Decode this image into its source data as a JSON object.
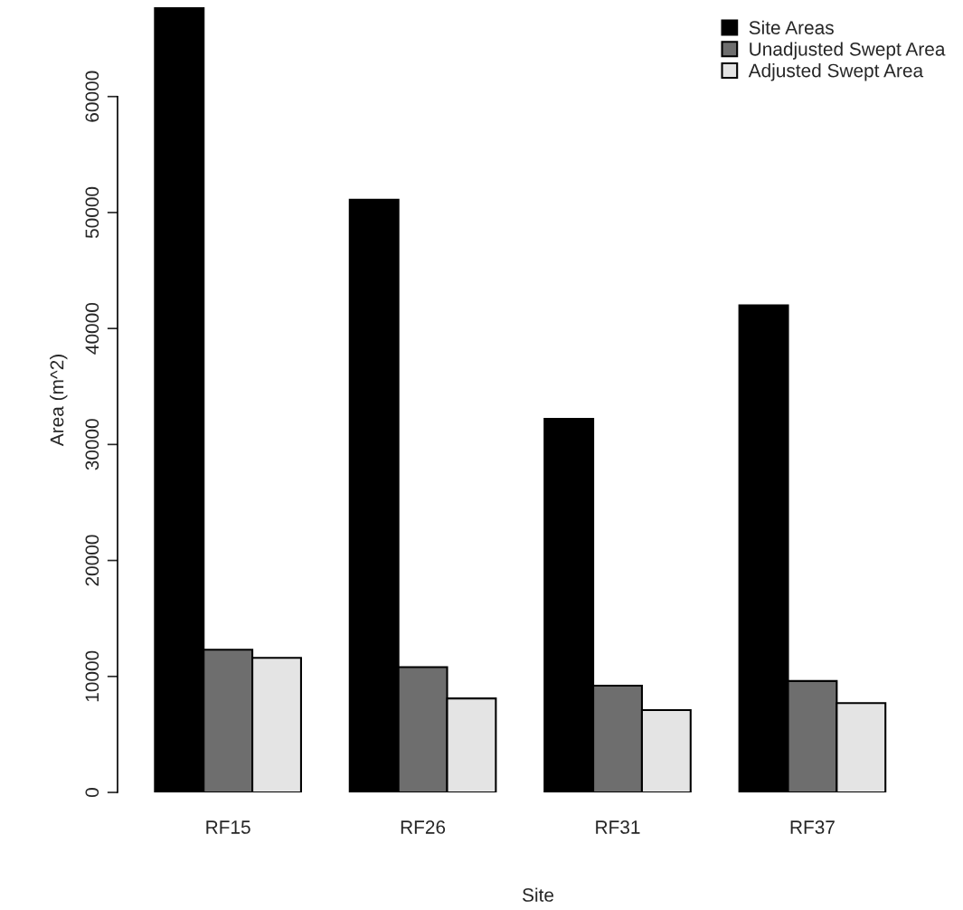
{
  "chart_data": {
    "type": "bar",
    "xlabel": "Site",
    "ylabel": "Area (m^2)",
    "categories": [
      "RF15",
      "RF26",
      "RF31",
      "RF37"
    ],
    "series": [
      {
        "name": "Site Areas",
        "color": "#000000",
        "values": [
          67700,
          51100,
          32200,
          42000
        ]
      },
      {
        "name": "Unadjusted Swept Area",
        "color": "#6e6e6e",
        "values": [
          12300,
          10800,
          9200,
          9600
        ]
      },
      {
        "name": "Adjusted Swept Area",
        "color": "#e4e4e4",
        "values": [
          11600,
          8100,
          7100,
          7700
        ]
      }
    ],
    "ylim": [
      0,
      67700
    ],
    "yticks": [
      0,
      10000,
      20000,
      30000,
      40000,
      50000,
      60000
    ],
    "grid": false,
    "legend": "top right"
  }
}
